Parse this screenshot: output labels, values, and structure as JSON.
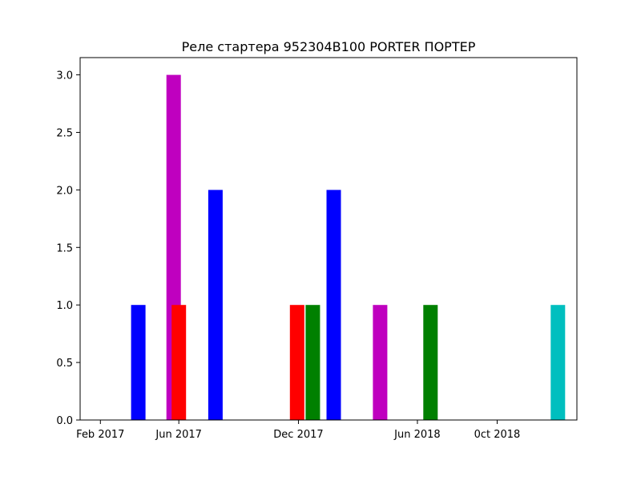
{
  "chart_data": {
    "type": "bar",
    "title": "Реле стартера 952304B100 PORTER ПОРТЕР",
    "xlabel": "",
    "ylabel": "",
    "x_axis": "date",
    "xlim": [
      "2017-01-01",
      "2019-01-31"
    ],
    "ylim": [
      0,
      3.15
    ],
    "x_ticks": [
      {
        "date": "2017-02-01",
        "label": "Feb 2017"
      },
      {
        "date": "2017-06-01",
        "label": "Jun 2017"
      },
      {
        "date": "2017-12-01",
        "label": "Dec 2017"
      },
      {
        "date": "2018-06-01",
        "label": "Jun 2018"
      },
      {
        "date": "2018-10-01",
        "label": "0ct 2018"
      }
    ],
    "y_ticks": [
      "0.0",
      "0.5",
      "1.0",
      "1.5",
      "2.0",
      "2.5",
      "3.0"
    ],
    "y_tick_values": [
      0,
      0.5,
      1.0,
      1.5,
      2.0,
      2.5,
      3.0
    ],
    "grid": false,
    "legend": "none",
    "bars": [
      {
        "date": "2017-03-31",
        "value": 1,
        "color": "#0000ff"
      },
      {
        "date": "2017-05-24",
        "value": 3,
        "color": "#bf00bf"
      },
      {
        "date": "2017-06-01",
        "value": 1,
        "color": "#ff0000"
      },
      {
        "date": "2017-07-27",
        "value": 2,
        "color": "#0000ff"
      },
      {
        "date": "2017-11-29",
        "value": 1,
        "color": "#ff0000"
      },
      {
        "date": "2017-12-23",
        "value": 1,
        "color": "#008000"
      },
      {
        "date": "2018-01-24",
        "value": 2,
        "color": "#0000ff"
      },
      {
        "date": "2018-04-05",
        "value": 1,
        "color": "#bf00bf"
      },
      {
        "date": "2018-06-21",
        "value": 1,
        "color": "#008000"
      },
      {
        "date": "2019-01-02",
        "value": 1,
        "color": "#00bfbf"
      }
    ]
  }
}
